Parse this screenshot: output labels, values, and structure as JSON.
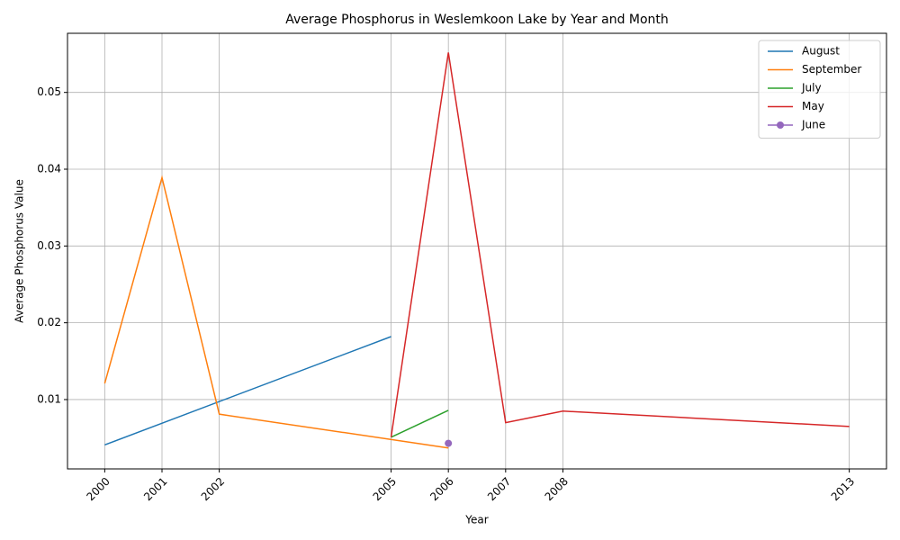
{
  "chart_data": {
    "type": "line",
    "title": "Average Phosphorus in Weslemkoon Lake by Year and Month",
    "x_label": "Year",
    "y_label": "Average Phosphorus Value",
    "series": [
      {
        "name": "August",
        "color": "#1f77b4",
        "x": [
          2000,
          2005
        ],
        "values": [
          0.0041,
          0.0182
        ]
      },
      {
        "name": "September",
        "color": "#ff7f0e",
        "x": [
          2000,
          2001,
          2002,
          2006
        ],
        "values": [
          0.0121,
          0.0389,
          0.0081,
          0.0037
        ]
      },
      {
        "name": "July",
        "color": "#2ca02c",
        "x": [
          2005,
          2006
        ],
        "values": [
          0.0051,
          0.0086
        ]
      },
      {
        "name": "May",
        "color": "#d62728",
        "x": [
          2005,
          2006,
          2007,
          2008,
          2013
        ],
        "values": [
          0.0051,
          0.0552,
          0.007,
          0.0085,
          0.0065
        ]
      },
      {
        "name": "June",
        "color": "#9467bd",
        "marker": "o",
        "x": [
          2006
        ],
        "values": [
          0.0043
        ]
      }
    ],
    "xlim": [
      1999.35,
      2013.65
    ],
    "ylim": [
      0.00097,
      0.0577
    ],
    "xticks": [
      2000,
      2001,
      2002,
      2005,
      2006,
      2007,
      2008,
      2013
    ],
    "yticks": [
      0.01,
      0.02,
      0.03,
      0.04,
      0.05
    ],
    "grid": true,
    "legend": "upper-right"
  }
}
